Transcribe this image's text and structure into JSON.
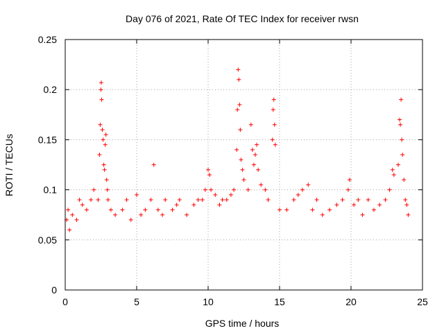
{
  "chart_data": {
    "type": "scatter",
    "title": "Day 076 of 2021, Rate Of TEC Index for receiver rwsn",
    "xlabel": "GPS time / hours",
    "ylabel": "ROTI / TECUs",
    "xlim": [
      0,
      25
    ],
    "ylim": [
      0,
      0.25
    ],
    "xticks": [
      0,
      5,
      10,
      15,
      20,
      25
    ],
    "yticks": [
      0,
      0.05,
      0.1,
      0.15,
      0.2,
      0.25
    ],
    "ytick_labels": [
      "0",
      "0.05",
      "0.1",
      "0.15",
      "0.2",
      "0.25"
    ],
    "grid": true,
    "marker": "+",
    "color": "#ff0000",
    "series": [
      {
        "name": "ROTI",
        "points": [
          [
            0.1,
            0.07
          ],
          [
            0.2,
            0.08
          ],
          [
            0.3,
            0.06
          ],
          [
            0.5,
            0.075
          ],
          [
            0.8,
            0.07
          ],
          [
            1.0,
            0.09
          ],
          [
            1.2,
            0.085
          ],
          [
            1.5,
            0.08
          ],
          [
            1.8,
            0.09
          ],
          [
            2.0,
            0.1
          ],
          [
            2.3,
            0.09
          ],
          [
            2.4,
            0.135
          ],
          [
            2.45,
            0.165
          ],
          [
            2.5,
            0.2
          ],
          [
            2.52,
            0.207
          ],
          [
            2.55,
            0.19
          ],
          [
            2.6,
            0.16
          ],
          [
            2.65,
            0.15
          ],
          [
            2.7,
            0.125
          ],
          [
            2.75,
            0.12
          ],
          [
            2.8,
            0.145
          ],
          [
            2.85,
            0.155
          ],
          [
            2.9,
            0.11
          ],
          [
            2.95,
            0.1
          ],
          [
            3.0,
            0.09
          ],
          [
            3.2,
            0.08
          ],
          [
            3.5,
            0.075
          ],
          [
            4.0,
            0.08
          ],
          [
            4.3,
            0.09
          ],
          [
            4.6,
            0.07
          ],
          [
            5.0,
            0.095
          ],
          [
            5.3,
            0.075
          ],
          [
            5.6,
            0.08
          ],
          [
            6.0,
            0.09
          ],
          [
            6.2,
            0.125
          ],
          [
            6.5,
            0.08
          ],
          [
            6.8,
            0.075
          ],
          [
            7.0,
            0.09
          ],
          [
            7.5,
            0.08
          ],
          [
            7.8,
            0.085
          ],
          [
            8.0,
            0.09
          ],
          [
            8.5,
            0.075
          ],
          [
            9.0,
            0.085
          ],
          [
            9.3,
            0.09
          ],
          [
            9.6,
            0.09
          ],
          [
            9.8,
            0.1
          ],
          [
            10.0,
            0.12
          ],
          [
            10.1,
            0.115
          ],
          [
            10.2,
            0.1
          ],
          [
            10.5,
            0.095
          ],
          [
            10.8,
            0.085
          ],
          [
            11.0,
            0.09
          ],
          [
            11.3,
            0.09
          ],
          [
            11.6,
            0.095
          ],
          [
            11.8,
            0.1
          ],
          [
            12.0,
            0.14
          ],
          [
            12.05,
            0.18
          ],
          [
            12.1,
            0.22
          ],
          [
            12.15,
            0.21
          ],
          [
            12.2,
            0.185
          ],
          [
            12.25,
            0.16
          ],
          [
            12.3,
            0.13
          ],
          [
            12.4,
            0.12
          ],
          [
            12.5,
            0.11
          ],
          [
            12.8,
            0.1
          ],
          [
            13.0,
            0.165
          ],
          [
            13.1,
            0.14
          ],
          [
            13.2,
            0.125
          ],
          [
            13.3,
            0.135
          ],
          [
            13.4,
            0.145
          ],
          [
            13.5,
            0.12
          ],
          [
            13.7,
            0.105
          ],
          [
            14.0,
            0.1
          ],
          [
            14.2,
            0.09
          ],
          [
            14.5,
            0.15
          ],
          [
            14.55,
            0.18
          ],
          [
            14.6,
            0.19
          ],
          [
            14.65,
            0.165
          ],
          [
            14.7,
            0.145
          ],
          [
            15.0,
            0.08
          ],
          [
            15.5,
            0.08
          ],
          [
            16.0,
            0.09
          ],
          [
            16.3,
            0.095
          ],
          [
            16.6,
            0.1
          ],
          [
            17.0,
            0.105
          ],
          [
            17.3,
            0.08
          ],
          [
            17.6,
            0.09
          ],
          [
            18.0,
            0.075
          ],
          [
            18.5,
            0.08
          ],
          [
            19.0,
            0.085
          ],
          [
            19.4,
            0.09
          ],
          [
            19.8,
            0.1
          ],
          [
            19.9,
            0.11
          ],
          [
            20.2,
            0.085
          ],
          [
            20.5,
            0.09
          ],
          [
            20.8,
            0.075
          ],
          [
            21.2,
            0.09
          ],
          [
            21.6,
            0.08
          ],
          [
            22.0,
            0.085
          ],
          [
            22.4,
            0.09
          ],
          [
            22.7,
            0.1
          ],
          [
            22.9,
            0.12
          ],
          [
            23.0,
            0.115
          ],
          [
            23.3,
            0.125
          ],
          [
            23.4,
            0.17
          ],
          [
            23.45,
            0.165
          ],
          [
            23.5,
            0.19
          ],
          [
            23.55,
            0.15
          ],
          [
            23.6,
            0.135
          ],
          [
            23.7,
            0.11
          ],
          [
            23.8,
            0.09
          ],
          [
            23.9,
            0.085
          ],
          [
            24.0,
            0.075
          ]
        ]
      }
    ]
  }
}
